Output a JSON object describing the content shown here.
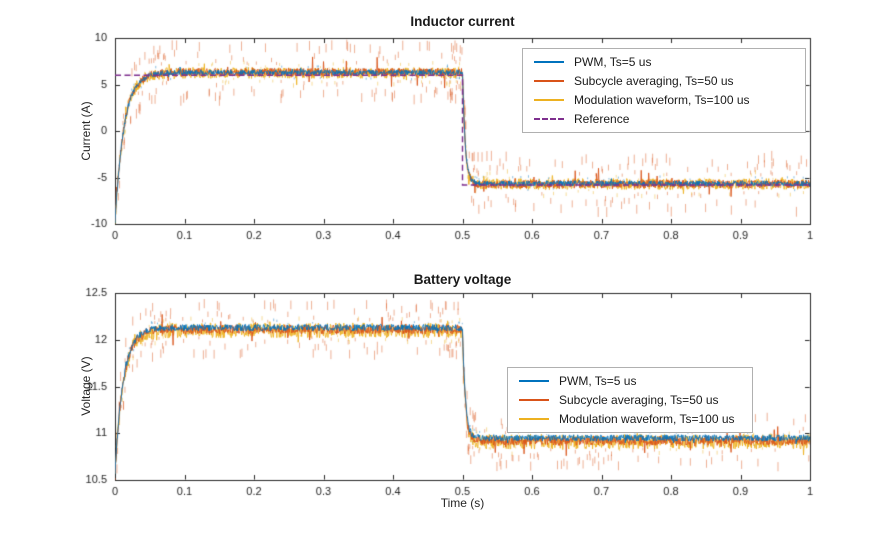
{
  "figure": {
    "background": "#ffffff",
    "axes_color": "#262626"
  },
  "chart_data": [
    {
      "type": "line",
      "title": "Inductor current",
      "xlabel": "",
      "ylabel": "Current (A)",
      "xlim": [
        0,
        1
      ],
      "ylim": [
        -10,
        10
      ],
      "xticks": [
        0,
        0.1,
        0.2,
        0.3,
        0.4,
        0.5,
        0.6,
        0.7,
        0.8,
        0.9,
        1
      ],
      "yticks": [
        -10,
        -5,
        0,
        5,
        10
      ],
      "grid": false,
      "legend_position": "inside-top-right",
      "step_time": 0.5,
      "series": [
        {
          "name": "PWM, Ts=5 us",
          "color": "#0072BD",
          "line": "solid",
          "start": -9.8,
          "steady1": 6.3,
          "steady2": -5.65,
          "tau": 0.013,
          "step_time": 0.5,
          "ripple": 0.3,
          "spike_amp": 0.9,
          "spikes": 70
        },
        {
          "name": "Subcycle averaging, Ts=50 us",
          "color": "#D95319",
          "line": "solid",
          "start": -9.8,
          "steady1": 6.3,
          "steady2": -5.7,
          "tau": 0.013,
          "step_time": 0.5,
          "ripple": 0.45,
          "spike_amp": 3.6,
          "spikes": 280
        },
        {
          "name": "Modulation waveform, Ts=100 us",
          "color": "#EDB120",
          "line": "solid",
          "start": -9.8,
          "steady1": 6.25,
          "steady2": -5.7,
          "tau": 0.013,
          "step_time": 0.5,
          "ripple": 0.6,
          "spike_amp": 1.6,
          "spikes": 110
        },
        {
          "name": "Reference",
          "color": "#7E2F8E",
          "line": "dashed",
          "start": 6,
          "steady1": 6,
          "steady2": -5.8,
          "tau": 0,
          "step_time": 0.5,
          "ripple": 0,
          "spike_amp": 0,
          "spikes": 0
        }
      ]
    },
    {
      "type": "line",
      "title": "Battery voltage",
      "xlabel": "Time (s)",
      "ylabel": "Voltage (V)",
      "xlim": [
        0,
        1
      ],
      "ylim": [
        10.5,
        12.5
      ],
      "xticks": [
        0,
        0.1,
        0.2,
        0.3,
        0.4,
        0.5,
        0.6,
        0.7,
        0.8,
        0.9,
        1
      ],
      "yticks": [
        10.5,
        11,
        11.5,
        12,
        12.5
      ],
      "grid": false,
      "legend_position": "inside-right",
      "step_time": 0.5,
      "series": [
        {
          "name": "PWM, Ts=5 us",
          "color": "#0072BD",
          "line": "solid",
          "start": 10.58,
          "steady1": 12.13,
          "steady2": 10.95,
          "tau": 0.012,
          "step_time": 0.5,
          "ripple": 0.035,
          "spike_amp": 0.1,
          "spikes": 60
        },
        {
          "name": "Subcycle averaging, Ts=50 us",
          "color": "#D95319",
          "line": "solid",
          "start": 10.58,
          "steady1": 12.11,
          "steady2": 10.92,
          "tau": 0.012,
          "step_time": 0.5,
          "ripple": 0.05,
          "spike_amp": 0.33,
          "spikes": 260
        },
        {
          "name": "Modulation waveform, Ts=100 us",
          "color": "#EDB120",
          "line": "solid",
          "start": 10.58,
          "steady1": 12.1,
          "steady2": 10.91,
          "tau": 0.012,
          "step_time": 0.5,
          "ripple": 0.08,
          "spike_amp": 0.16,
          "spikes": 90
        }
      ]
    }
  ]
}
